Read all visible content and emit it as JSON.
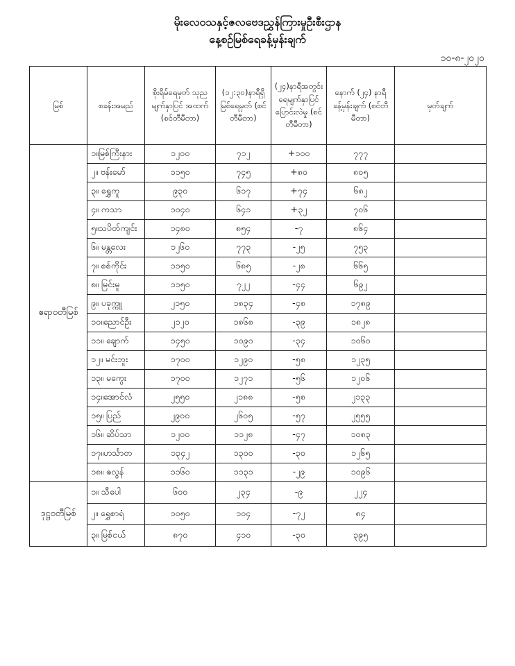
{
  "title": {
    "line1": "မိုးလေဝသနှင့်ဇလဗေဒညွှန်ကြားမှုဦးစီးဌာန",
    "line2": "နေ့စဉ်မြစ်ရေခန့်မှန်းချက်"
  },
  "date": "၁၀-၈-၂၀၂၀",
  "table": {
    "headers": [
      "မြစ်",
      "စခန်းအမည်",
      "စိုးရိမ်ရေမှတ် သုညမျက်နှာပြင် အထက် (စင်တီမီတာ)",
      "(၁၂:၃၀)နာရီရှိ မြစ်ရေမှတ် (စင်တီမီတာ)",
      "(၂၄)နာရီအတွင်း ရေမျက်နှာပြင် ပြောင်းလဲမှု (စင်တီမီတာ)",
      "နောက် (၂၄) နာရီ ခန့်မှန်းချက် (စင်တီမီတာ)",
      "မှတ်ချက်"
    ],
    "sections": [
      {
        "river": "ဧရာဝတီမြစ်",
        "rows": [
          {
            "station": "၁။မြစ်ကြီးနား",
            "danger": "၁၂၀၀",
            "level": "၇၁၂",
            "change": "+၁၀၀",
            "forecast": "၇၇၇",
            "remark": ""
          },
          {
            "station": "၂။ ဗန်းမော်",
            "danger": "၁၁၅၀",
            "level": "၇၄၅",
            "change": "+၈၀",
            "forecast": "၈၀၅",
            "remark": ""
          },
          {
            "station": "၃။ ရွှေကူ",
            "danger": "၉၃၀",
            "level": "၆၁၇",
            "change": "+၇၄",
            "forecast": "၆၈၂",
            "remark": ""
          },
          {
            "station": "၄။ ကသာ",
            "danger": "၁၀၄၀",
            "level": "၆၄၁",
            "change": "+၃၂",
            "forecast": "၇၀၆",
            "remark": ""
          },
          {
            "station": "၅။သပိတ်ကျင်း",
            "danger": "၁၄၈၀",
            "level": "၈၅၄",
            "change": "-၇",
            "forecast": "၈၆၄",
            "remark": ""
          },
          {
            "station": "၆။ မန္တလေး",
            "danger": "၁၂၆၀",
            "level": "၇၇၃",
            "change": "-၂၅",
            "forecast": "၇၅၃",
            "remark": ""
          },
          {
            "station": "၇။ စစ်ကိုင်း",
            "danger": "၁၁၅၀",
            "level": "၆၈၅",
            "change": "-၂၈",
            "forecast": "၆၆၅",
            "remark": ""
          },
          {
            "station": "၈။ မြင်းမူ",
            "danger": "၁၁၅၀",
            "level": "၇၂၂",
            "change": "-၄၄",
            "forecast": "၆၉၂",
            "remark": ""
          },
          {
            "station": "၉။ ပခုက္ကူ",
            "danger": "၂၁၅၀",
            "level": "၁၈၃၄",
            "change": "-၄၈",
            "forecast": "၁၇၈၉",
            "remark": ""
          },
          {
            "station": "၁၀။ညောင်ဦး",
            "danger": "၂၁၂၀",
            "level": "၁၈၆၈",
            "change": "-၃၉",
            "forecast": "၁၈၂၈",
            "remark": ""
          },
          {
            "station": "၁၁။ ချောက်",
            "danger": "၁၄၅၀",
            "level": "၁၀၉၀",
            "change": "-၃၄",
            "forecast": "၁၀၆၀",
            "remark": ""
          },
          {
            "station": "၁၂။ မင်းဘူး",
            "danger": "၁၇၀၀",
            "level": "၁၂၉၀",
            "change": "-၅၈",
            "forecast": "၁၂၃၅",
            "remark": ""
          },
          {
            "station": "၁၃။ မကွေး",
            "danger": "၁၇၀၀",
            "level": "၁၂၇၁",
            "change": "-၅၆",
            "forecast": "၁၂၀၆",
            "remark": ""
          },
          {
            "station": "၁၄။အောင်လံ",
            "danger": "၂၅၅၀",
            "level": "၂၁၈၈",
            "change": "-၅၈",
            "forecast": "၂၁၃၃",
            "remark": ""
          },
          {
            "station": "၁၅။ ပြည်",
            "danger": "၂၉၀၀",
            "level": "၂၆၀၅",
            "change": "-၅၇",
            "forecast": "၂၅၅၅",
            "remark": ""
          },
          {
            "station": "၁၆။ ဆိပ်သာ",
            "danger": "၁၂၀၀",
            "level": "၁၁၂၈",
            "change": "-၄၇",
            "forecast": "၁၀၈၃",
            "remark": ""
          },
          {
            "station": "၁၇။ဟင်္သာတ",
            "danger": "၁၃၄၂",
            "level": "၁၃၀၀",
            "change": "-၃၀",
            "forecast": "၁၂၆၅",
            "remark": ""
          },
          {
            "station": "၁၈။ ဇလွန်",
            "danger": "၁၁၆၀",
            "level": "၁၁၃၁",
            "change": "-၂၉",
            "forecast": "၁၀၉၆",
            "remark": ""
          }
        ]
      },
      {
        "river": "ဒုဋ္ဌဝတီမြစ်",
        "rows": [
          {
            "station": "၁။ သီပေါ",
            "danger": "၆၀၀",
            "level": "၂၃၄",
            "change": "-၉",
            "forecast": "၂၂၄",
            "remark": ""
          },
          {
            "station": "၂။ ရွှေစာရံ",
            "danger": "၁၀၅၀",
            "level": "၁၀၄",
            "change": "-၇၂",
            "forecast": "၈၄",
            "remark": ""
          },
          {
            "station": "၃။ မြစ်ငယ်",
            "danger": "၈၇၀",
            "level": "၄၁၀",
            "change": "-၃၀",
            "forecast": "၃၉၅",
            "remark": ""
          }
        ]
      }
    ]
  }
}
